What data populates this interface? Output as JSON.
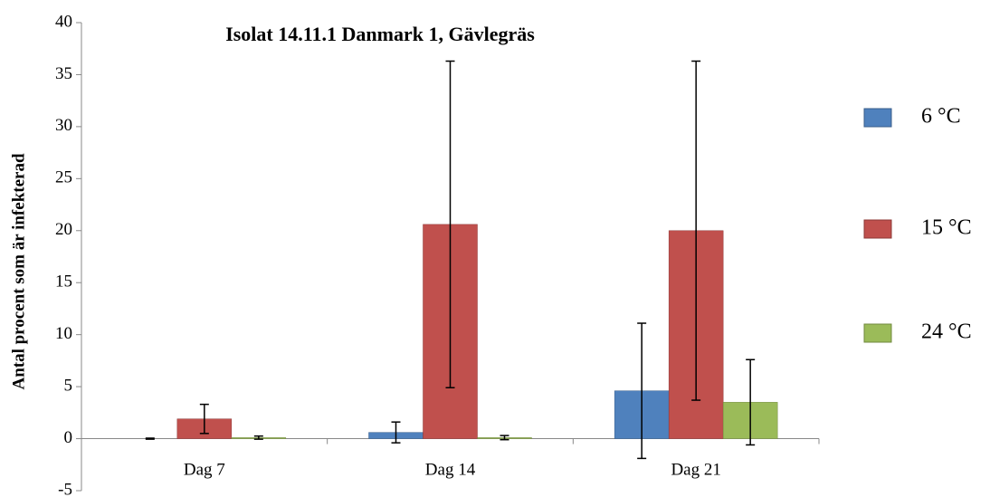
{
  "chart_data": {
    "type": "bar",
    "title": "Isolat 14.11.1 Danmark 1, Gävlegräs",
    "y_label": "Antal procent som är infekterad",
    "categories": [
      "Dag 7",
      "Dag 14",
      "Dag 21"
    ],
    "series": [
      {
        "name": "6 °C",
        "color": "#4f81bd",
        "values": [
          0,
          0.6,
          4.6
        ],
        "errors": [
          0.05,
          1.0,
          6.5
        ]
      },
      {
        "name": "15 °C",
        "color": "#c0504d",
        "values": [
          1.9,
          20.6,
          20.0
        ],
        "errors": [
          1.4,
          15.7,
          16.3
        ]
      },
      {
        "name": "24 °C",
        "color": "#9bbb59",
        "values": [
          0.1,
          0.1,
          3.5
        ],
        "errors": [
          0.15,
          0.2,
          4.1
        ]
      }
    ],
    "ylim": [
      -5,
      40
    ],
    "yticks": [
      -5,
      0,
      5,
      10,
      15,
      20,
      25,
      30,
      35,
      40
    ],
    "legend": "right",
    "grid": false
  }
}
